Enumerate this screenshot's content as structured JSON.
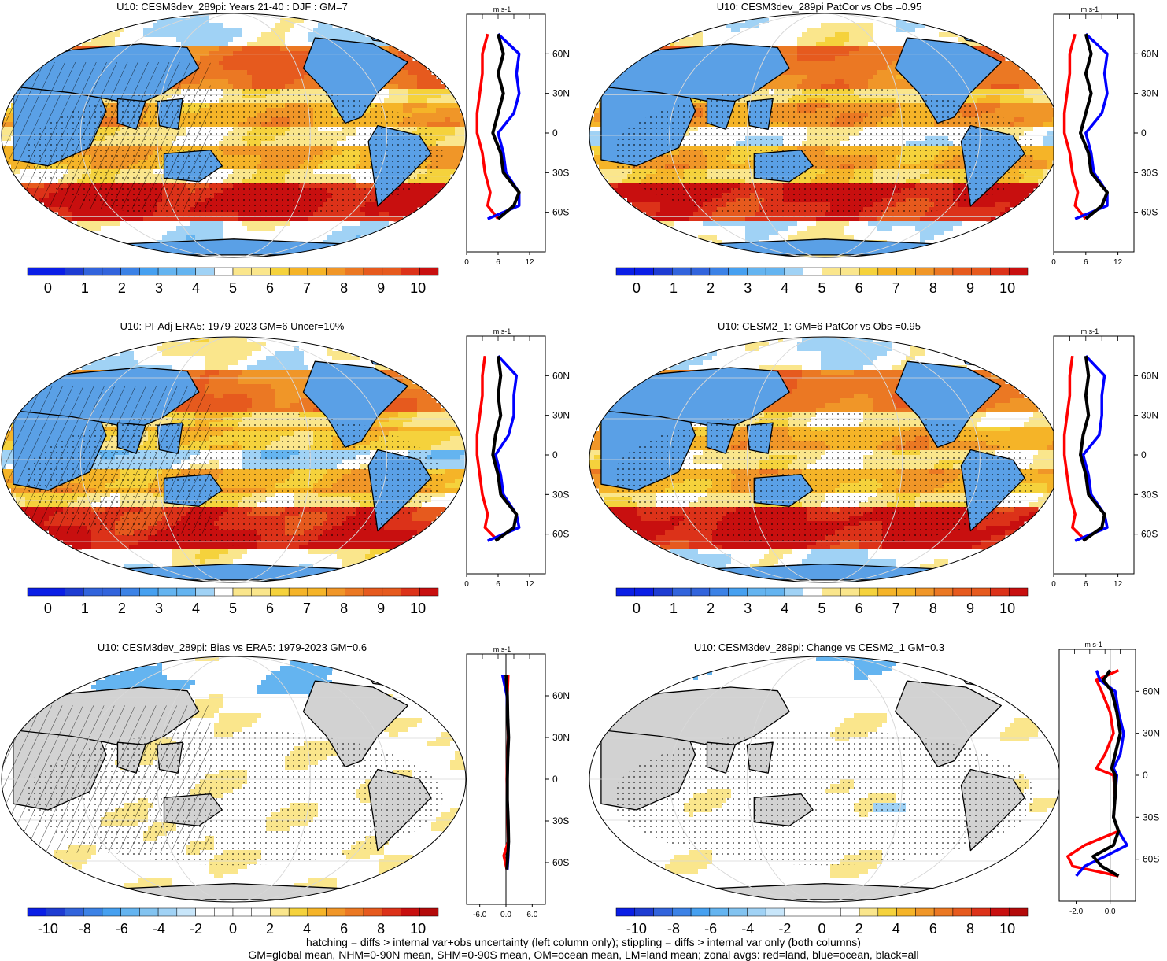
{
  "chart_data": [
    {
      "type": "heatmap",
      "title": "U10: CESM3dev_289pi: Years 21-40 : DJF : GM=7",
      "colorbar": {
        "ticks": [
          "0",
          "1",
          "2",
          "3",
          "4",
          "5",
          "6",
          "7",
          "8",
          "9",
          "10"
        ],
        "range": [
          0,
          10.5
        ]
      },
      "pattern": "mean",
      "hatching": true,
      "stippling": true,
      "zonal": {
        "units": "m s-1",
        "xlim": [
          0,
          15
        ],
        "xticks": [
          "0",
          "6",
          "12"
        ],
        "yticks": [
          "60N",
          "30N",
          "0",
          "30S",
          "60S"
        ],
        "series": [
          {
            "name": "land",
            "color": "#ff0000",
            "lat": [
              75,
              60,
              45,
              30,
              15,
              0,
              -15,
              -30,
              -45,
              -55,
              -65
            ],
            "values": [
              4,
              3,
              3,
              2.5,
              2,
              2,
              3,
              3.5,
              4.5,
              4,
              6
            ]
          },
          {
            "name": "ocean",
            "color": "#0000ff",
            "lat": [
              75,
              60,
              45,
              30,
              15,
              0,
              -15,
              -30,
              -45,
              -55,
              -65
            ],
            "values": [
              6,
              10,
              9.5,
              10,
              9,
              6,
              7,
              7.5,
              10,
              10,
              4
            ]
          },
          {
            "name": "all",
            "color": "#000000",
            "lat": [
              75,
              60,
              45,
              30,
              15,
              0,
              -15,
              -30,
              -45,
              -55,
              -65
            ],
            "values": [
              6,
              7,
              6,
              7,
              6,
              5,
              6.5,
              7,
              10,
              9,
              6
            ]
          }
        ]
      }
    },
    {
      "type": "heatmap",
      "title": "U10: CESM3dev_289pi PatCor vs Obs =0.95",
      "colorbar": {
        "ticks": [
          "0",
          "1",
          "2",
          "3",
          "4",
          "5",
          "6",
          "7",
          "8",
          "9",
          "10"
        ],
        "range": [
          0,
          10.5
        ]
      },
      "pattern": "mean",
      "hatching": false,
      "stippling": true,
      "zonal": {
        "units": "m s-1",
        "xlim": [
          0,
          15
        ],
        "xticks": [
          "0",
          "6",
          "12"
        ],
        "yticks": [
          "60N",
          "30N",
          "0",
          "30S",
          "60S"
        ],
        "series": [
          {
            "name": "land",
            "color": "#ff0000",
            "lat": [
              75,
              60,
              45,
              30,
              15,
              0,
              -15,
              -30,
              -45,
              -55,
              -65
            ],
            "values": [
              4,
              3,
              3,
              2.5,
              2,
              2,
              3,
              3.5,
              4.5,
              4,
              6
            ]
          },
          {
            "name": "ocean",
            "color": "#0000ff",
            "lat": [
              75,
              60,
              45,
              30,
              15,
              0,
              -15,
              -30,
              -45,
              -55,
              -65
            ],
            "values": [
              6,
              10,
              9.5,
              10,
              9,
              6,
              7,
              7.5,
              10,
              10,
              4
            ]
          },
          {
            "name": "all",
            "color": "#000000",
            "lat": [
              75,
              60,
              45,
              30,
              15,
              0,
              -15,
              -30,
              -45,
              -55,
              -65
            ],
            "values": [
              6,
              7,
              6,
              7,
              6,
              5,
              6.5,
              7,
              10,
              9,
              6
            ]
          }
        ]
      }
    },
    {
      "type": "heatmap",
      "title": "U10: PI-Adj ERA5: 1979-2023 GM=6 Uncer=10%",
      "colorbar": {
        "ticks": [
          "0",
          "1",
          "2",
          "3",
          "4",
          "5",
          "6",
          "7",
          "8",
          "9",
          "10"
        ],
        "range": [
          0,
          10.5
        ]
      },
      "pattern": "obs",
      "hatching": true,
      "stippling": true,
      "zonal": {
        "units": "m s-1",
        "xlim": [
          0,
          15
        ],
        "xticks": [
          "0",
          "6",
          "12"
        ],
        "yticks": [
          "60N",
          "30N",
          "0",
          "30S",
          "60S"
        ],
        "series": [
          {
            "name": "land",
            "color": "#ff0000",
            "lat": [
              75,
              60,
              45,
              30,
              15,
              0,
              -15,
              -30,
              -45,
              -55,
              -65
            ],
            "values": [
              3.5,
              3,
              3,
              2.5,
              2,
              2,
              2.5,
              3,
              4,
              3.5,
              6
            ]
          },
          {
            "name": "ocean",
            "color": "#0000ff",
            "lat": [
              75,
              60,
              45,
              30,
              15,
              0,
              -15,
              -30,
              -45,
              -55,
              -65
            ],
            "values": [
              6,
              9.5,
              9,
              9,
              8,
              5.5,
              6.5,
              7,
              9.5,
              10,
              4
            ]
          },
          {
            "name": "all",
            "color": "#000000",
            "lat": [
              75,
              60,
              45,
              30,
              15,
              0,
              -15,
              -30,
              -45,
              -55,
              -65
            ],
            "values": [
              6,
              6.5,
              6,
              6.5,
              5.5,
              5,
              6,
              6.5,
              9.5,
              9,
              5.5
            ]
          }
        ]
      }
    },
    {
      "type": "heatmap",
      "title": "U10: CESM2_1: GM=6 PatCor vs Obs =0.95",
      "colorbar": {
        "ticks": [
          "0",
          "1",
          "2",
          "3",
          "4",
          "5",
          "6",
          "7",
          "8",
          "9",
          "10"
        ],
        "range": [
          0,
          10.5
        ]
      },
      "pattern": "mean",
      "hatching": false,
      "stippling": true,
      "zonal": {
        "units": "m s-1",
        "xlim": [
          0,
          15
        ],
        "xticks": [
          "0",
          "6",
          "12"
        ],
        "yticks": [
          "60N",
          "30N",
          "0",
          "30S",
          "60S"
        ],
        "series": [
          {
            "name": "land",
            "color": "#ff0000",
            "lat": [
              75,
              60,
              45,
              30,
              15,
              0,
              -15,
              -30,
              -45,
              -55,
              -65
            ],
            "values": [
              3.5,
              3,
              3,
              2.5,
              2,
              2,
              2.5,
              3,
              4,
              3.5,
              6
            ]
          },
          {
            "name": "ocean",
            "color": "#0000ff",
            "lat": [
              75,
              60,
              45,
              30,
              15,
              0,
              -15,
              -30,
              -45,
              -55,
              -65
            ],
            "values": [
              6,
              9.5,
              9,
              9,
              8.5,
              5.5,
              6.5,
              7,
              9.5,
              10,
              4
            ]
          },
          {
            "name": "all",
            "color": "#000000",
            "lat": [
              75,
              60,
              45,
              30,
              15,
              0,
              -15,
              -30,
              -45,
              -55,
              -65
            ],
            "values": [
              6,
              6.5,
              6,
              6.5,
              5.5,
              5,
              6,
              6.5,
              9.5,
              9,
              5.5
            ]
          }
        ]
      }
    },
    {
      "type": "heatmap",
      "title": "U10: CESM3dev_289pi: Bias vs ERA5: 1979-2023 GM=0.6",
      "colorbar": {
        "ticks": [
          "-10",
          "-8",
          "-6",
          "-4",
          "-2",
          "0",
          "2",
          "4",
          "6",
          "8",
          "10"
        ],
        "range": [
          -11,
          11
        ]
      },
      "pattern": "bias",
      "hatching": true,
      "stippling": true,
      "zonal": {
        "units": "m s-1",
        "xlim": [
          -9,
          9
        ],
        "xticks": [
          "-6.0",
          "0.0",
          "6.0"
        ],
        "yticks": [
          "60N",
          "30N",
          "0",
          "30S",
          "60S"
        ],
        "series": [
          {
            "name": "land",
            "color": "#ff0000",
            "lat": [
              75,
              60,
              45,
              30,
              15,
              0,
              -15,
              -30,
              -45,
              -55,
              -65
            ],
            "values": [
              0.5,
              0.3,
              0.4,
              0.5,
              0.3,
              0.2,
              0.3,
              0.4,
              0.5,
              -0.5,
              0.2
            ]
          },
          {
            "name": "ocean",
            "color": "#0000ff",
            "lat": [
              75,
              60,
              45,
              30,
              15,
              0,
              -15,
              -30,
              -45,
              -55,
              -65
            ],
            "values": [
              -0.8,
              0.2,
              0.4,
              0.6,
              0.4,
              0.3,
              0.3,
              0.5,
              0.6,
              0.5,
              0.3
            ]
          },
          {
            "name": "all",
            "color": "#000000",
            "lat": [
              75,
              60,
              45,
              30,
              15,
              0,
              -15,
              -30,
              -45,
              -55,
              -65
            ],
            "values": [
              0,
              0.3,
              0.4,
              0.6,
              0.4,
              0.3,
              0.3,
              0.5,
              0.6,
              0.4,
              0.2
            ]
          }
        ]
      }
    },
    {
      "type": "heatmap",
      "title": "U10: CESM3dev_289pi: Change vs CESM2_1 GM=0.3",
      "colorbar": {
        "ticks": [
          "-10",
          "-8",
          "-6",
          "-4",
          "-2",
          "0",
          "2",
          "4",
          "6",
          "8",
          "10"
        ],
        "range": [
          -11,
          11
        ]
      },
      "pattern": "change",
      "hatching": false,
      "stippling": true,
      "zonal": {
        "units": "m s-1",
        "xlim": [
          -3,
          1.5
        ],
        "xticks": [
          "-2.0",
          "0.0"
        ],
        "yticks": [
          "60N",
          "30N",
          "0",
          "30S",
          "60S"
        ],
        "series": [
          {
            "name": "land",
            "color": "#ff0000",
            "lat": [
              75,
              68,
              60,
              45,
              30,
              15,
              5,
              0,
              -15,
              -30,
              -40,
              -50,
              -58,
              -65,
              -72
            ],
            "values": [
              0.5,
              -0.8,
              -0.5,
              0,
              0.2,
              -0.3,
              -0.8,
              0.2,
              0.3,
              0.2,
              0.5,
              -1.5,
              -2.5,
              -2.2,
              0.5
            ]
          },
          {
            "name": "ocean",
            "color": "#0000ff",
            "lat": [
              75,
              68,
              60,
              45,
              30,
              15,
              5,
              0,
              -15,
              -30,
              -40,
              -50,
              -58,
              -65,
              -72
            ],
            "values": [
              -0.8,
              -0.6,
              0.3,
              0.5,
              0.8,
              0.6,
              0.2,
              0.4,
              0.3,
              0.2,
              0.5,
              1.0,
              -0.3,
              -1.5,
              -2.0
            ]
          },
          {
            "name": "all",
            "color": "#000000",
            "lat": [
              75,
              68,
              60,
              45,
              30,
              15,
              5,
              0,
              -15,
              -30,
              -40,
              -50,
              -58,
              -65,
              -72
            ],
            "values": [
              0,
              -0.4,
              0.1,
              0.4,
              0.6,
              0.3,
              0.1,
              0.3,
              0.3,
              0.2,
              0.5,
              0.2,
              -1.0,
              -0.5,
              0.5
            ]
          }
        ]
      }
    }
  ],
  "footer": {
    "line1": "hatching = diffs > internal var+obs uncertainty (left column only); stippling = diffs > internal var only (both columns)",
    "line2": "GM=global mean, NHM=0-90N mean, SHM=0-90S mean, OM=ocean mean, LM=land mean; zonal avgs: red=land, blue=ocean, black=all"
  },
  "colors": {
    "mean_scale": [
      "#0a1ee6",
      "#1e3cd2",
      "#3264dc",
      "#3c82e6",
      "#46a0f0",
      "#64b4f0",
      "#a0d2f5",
      "#ffffff",
      "#fae68c",
      "#f5d23c",
      "#f5b428",
      "#f09628",
      "#eb7823",
      "#e65a1e",
      "#dc3219",
      "#c80f0f"
    ],
    "land_grey": "#d2d2d2"
  }
}
